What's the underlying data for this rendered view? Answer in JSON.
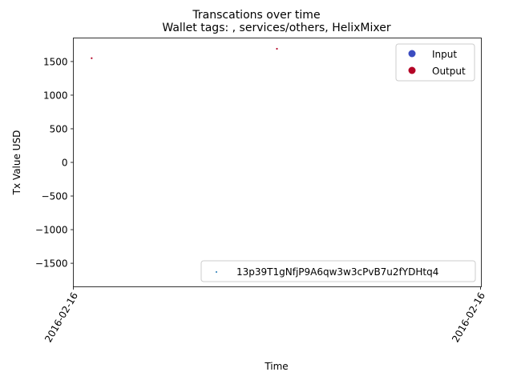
{
  "chart_data": {
    "type": "scatter",
    "title": "Transcations over time",
    "subtitle": "Wallet tags: , services/others, HelixMixer",
    "xlabel": "Time",
    "ylabel": "Tx Value USD",
    "ylim": [
      -1850,
      1850
    ],
    "yticks": [
      -1500,
      -1000,
      -500,
      0,
      500,
      1000,
      1500
    ],
    "yticklabels": [
      "−1500",
      "−1000",
      "−500",
      "0",
      "500",
      "1000",
      "1500"
    ],
    "xlim": [
      0,
      1
    ],
    "xticks": [
      0,
      1
    ],
    "xticklabels": [
      "2016-02-16",
      "2016-02-16"
    ],
    "x_axis_type": "date",
    "grid": false,
    "series": [
      {
        "name": "Output",
        "color": "#b40426",
        "points": [
          {
            "x": 0.045,
            "y": 1550
          },
          {
            "x": 0.5,
            "y": 1690
          }
        ]
      }
    ],
    "legend_type": {
      "placement": "upper-right",
      "entries": [
        {
          "label": "Input",
          "color": "#3b4cc0"
        },
        {
          "label": "Output",
          "color": "#b40426"
        }
      ]
    },
    "legend_wallet": {
      "placement": "lower-right",
      "entries": [
        {
          "label": "13p39T1gNfjP9A6qw3w3cPvB7u2fYDHtq4",
          "color": "#1f77b4"
        }
      ]
    }
  }
}
